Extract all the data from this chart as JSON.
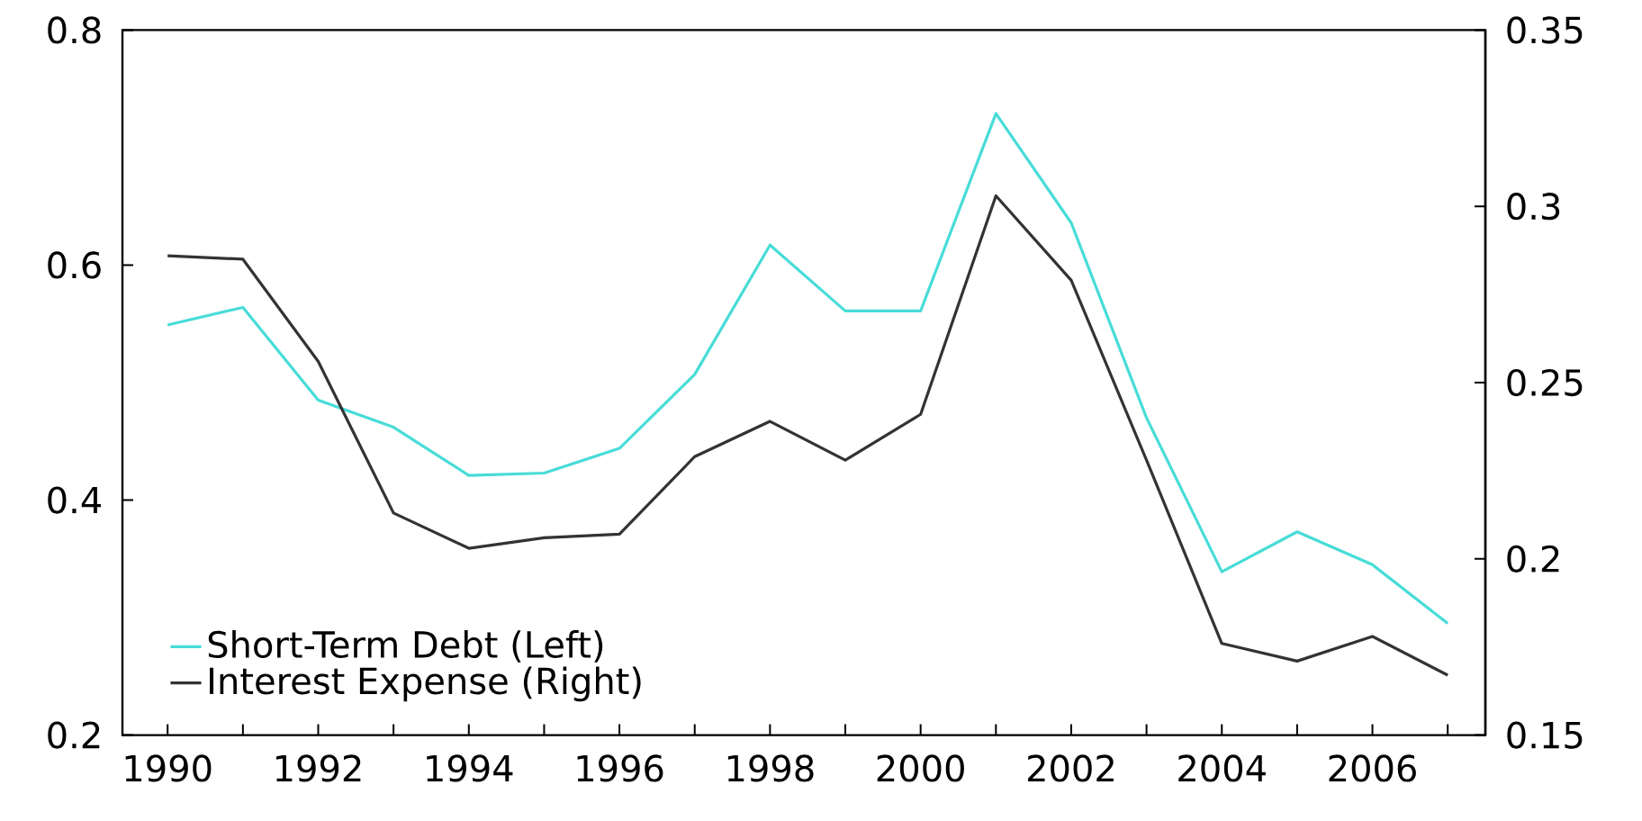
{
  "chart_data": {
    "type": "line",
    "x": [
      1990,
      1991,
      1992,
      1993,
      1994,
      1995,
      1996,
      1997,
      1998,
      1999,
      2000,
      2001,
      2002,
      2003,
      2004,
      2005,
      2006,
      2007
    ],
    "series": [
      {
        "name": "Short-Term Debt (Left)",
        "color": "#48dcd8",
        "values": [
          0.549,
          0.564,
          0.485,
          0.462,
          0.421,
          0.423,
          0.444,
          0.507,
          0.617,
          0.561,
          0.561,
          0.729,
          0.636,
          0.47,
          0.339,
          0.373,
          0.345,
          0.295
        ]
      },
      {
        "name": "Interest Expense (Right)",
        "color": "#333333",
        "axis": "y2",
        "values": [
          0.286,
          0.285,
          0.256,
          0.213,
          0.203,
          0.206,
          0.207,
          0.229,
          0.239,
          0.228,
          0.241,
          0.303,
          0.279,
          0.228,
          0.176,
          0.171,
          0.178,
          0.167
        ]
      }
    ],
    "xlim": [
      1989.4,
      2007.5
    ],
    "xticks": [
      1990,
      {
        "value": 1991,
        "label": null
      },
      1992,
      {
        "value": 1993,
        "label": null
      },
      1994,
      {
        "value": 1995,
        "label": null
      },
      1996,
      {
        "value": 1997,
        "label": null
      },
      1998,
      {
        "value": 1999,
        "label": null
      },
      2000,
      {
        "value": 2001,
        "label": null
      },
      2002,
      {
        "value": 2003,
        "label": null
      },
      2004,
      {
        "value": 2005,
        "label": null
      },
      2006,
      {
        "value": 2007,
        "label": null
      }
    ],
    "ylim": [
      0.2,
      0.8
    ],
    "yticks": [
      0.2,
      0.4,
      0.6,
      0.8
    ],
    "y2lim": [
      0.15,
      0.35
    ],
    "y2ticks": [
      0.15,
      0.2,
      0.25,
      0.3,
      0.35
    ],
    "legend": "bottom left",
    "grid": false,
    "marker": "none",
    "line_style": "solid"
  }
}
